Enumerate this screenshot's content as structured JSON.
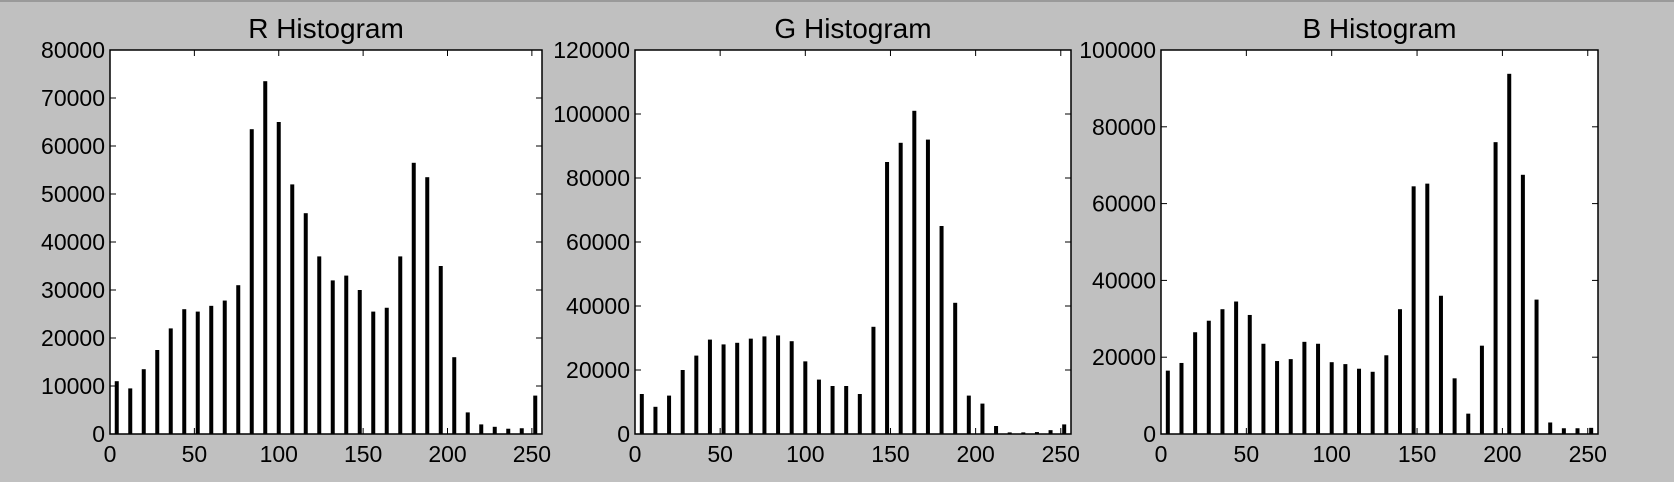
{
  "chart_data": [
    {
      "type": "bar",
      "title": "R Histogram",
      "xlabel": "",
      "ylabel": "",
      "xlim": [
        0,
        256
      ],
      "ylim": [
        0,
        80000
      ],
      "xticks": [
        "0",
        "50",
        "100",
        "150",
        "200",
        "250"
      ],
      "yticks": [
        "0",
        "10000",
        "20000",
        "30000",
        "40000",
        "50000",
        "60000",
        "70000",
        "80000"
      ],
      "grid": false,
      "bar_color": "#000000",
      "x": [
        4,
        12,
        20,
        28,
        36,
        44,
        52,
        60,
        68,
        76,
        84,
        92,
        100,
        108,
        116,
        124,
        132,
        140,
        148,
        156,
        164,
        172,
        180,
        188,
        196,
        204,
        212,
        220,
        228,
        236,
        244,
        252
      ],
      "values": [
        11000,
        9500,
        13500,
        17500,
        22000,
        26000,
        25500,
        26700,
        27800,
        31000,
        63500,
        73500,
        65000,
        52000,
        46000,
        37000,
        32000,
        33000,
        30000,
        25500,
        26300,
        37000,
        56500,
        53500,
        35000,
        16000,
        4500,
        2000,
        1500,
        1100,
        1200,
        8000
      ]
    },
    {
      "type": "bar",
      "title": "G Histogram",
      "xlabel": "",
      "ylabel": "",
      "xlim": [
        0,
        256
      ],
      "ylim": [
        0,
        120000
      ],
      "xticks": [
        "0",
        "50",
        "100",
        "150",
        "200",
        "250"
      ],
      "yticks": [
        "0",
        "20000",
        "40000",
        "60000",
        "80000",
        "100000",
        "120000"
      ],
      "grid": false,
      "bar_color": "#000000",
      "x": [
        4,
        12,
        20,
        28,
        36,
        44,
        52,
        60,
        68,
        76,
        84,
        92,
        100,
        108,
        116,
        124,
        132,
        140,
        148,
        156,
        164,
        172,
        180,
        188,
        196,
        204,
        212,
        220,
        228,
        236,
        244,
        252
      ],
      "values": [
        12500,
        8500,
        12000,
        20000,
        24500,
        29500,
        28000,
        28500,
        29800,
        30500,
        30800,
        29000,
        22700,
        17000,
        15000,
        15000,
        12500,
        33500,
        85000,
        91000,
        101000,
        92000,
        65000,
        41000,
        12000,
        9500,
        2500,
        500,
        500,
        600,
        1200,
        3000
      ]
    },
    {
      "type": "bar",
      "title": "B Histogram",
      "xlabel": "",
      "ylabel": "",
      "xlim": [
        0,
        256
      ],
      "ylim": [
        0,
        100000
      ],
      "xticks": [
        "0",
        "50",
        "100",
        "150",
        "200",
        "250"
      ],
      "yticks": [
        "0",
        "20000",
        "40000",
        "60000",
        "80000",
        "100000"
      ],
      "grid": false,
      "bar_color": "#000000",
      "x": [
        4,
        12,
        20,
        28,
        36,
        44,
        52,
        60,
        68,
        76,
        84,
        92,
        100,
        108,
        116,
        124,
        132,
        140,
        148,
        156,
        164,
        172,
        180,
        188,
        196,
        204,
        212,
        220,
        228,
        236,
        244,
        252
      ],
      "values": [
        16500,
        18500,
        26500,
        29500,
        32500,
        34500,
        31000,
        23500,
        19000,
        19500,
        24000,
        23500,
        18700,
        18200,
        17000,
        16200,
        20500,
        32500,
        64500,
        65200,
        36000,
        14500,
        5300,
        23000,
        76000,
        93800,
        67500,
        35000,
        3000,
        1500,
        1500,
        1600
      ]
    }
  ]
}
